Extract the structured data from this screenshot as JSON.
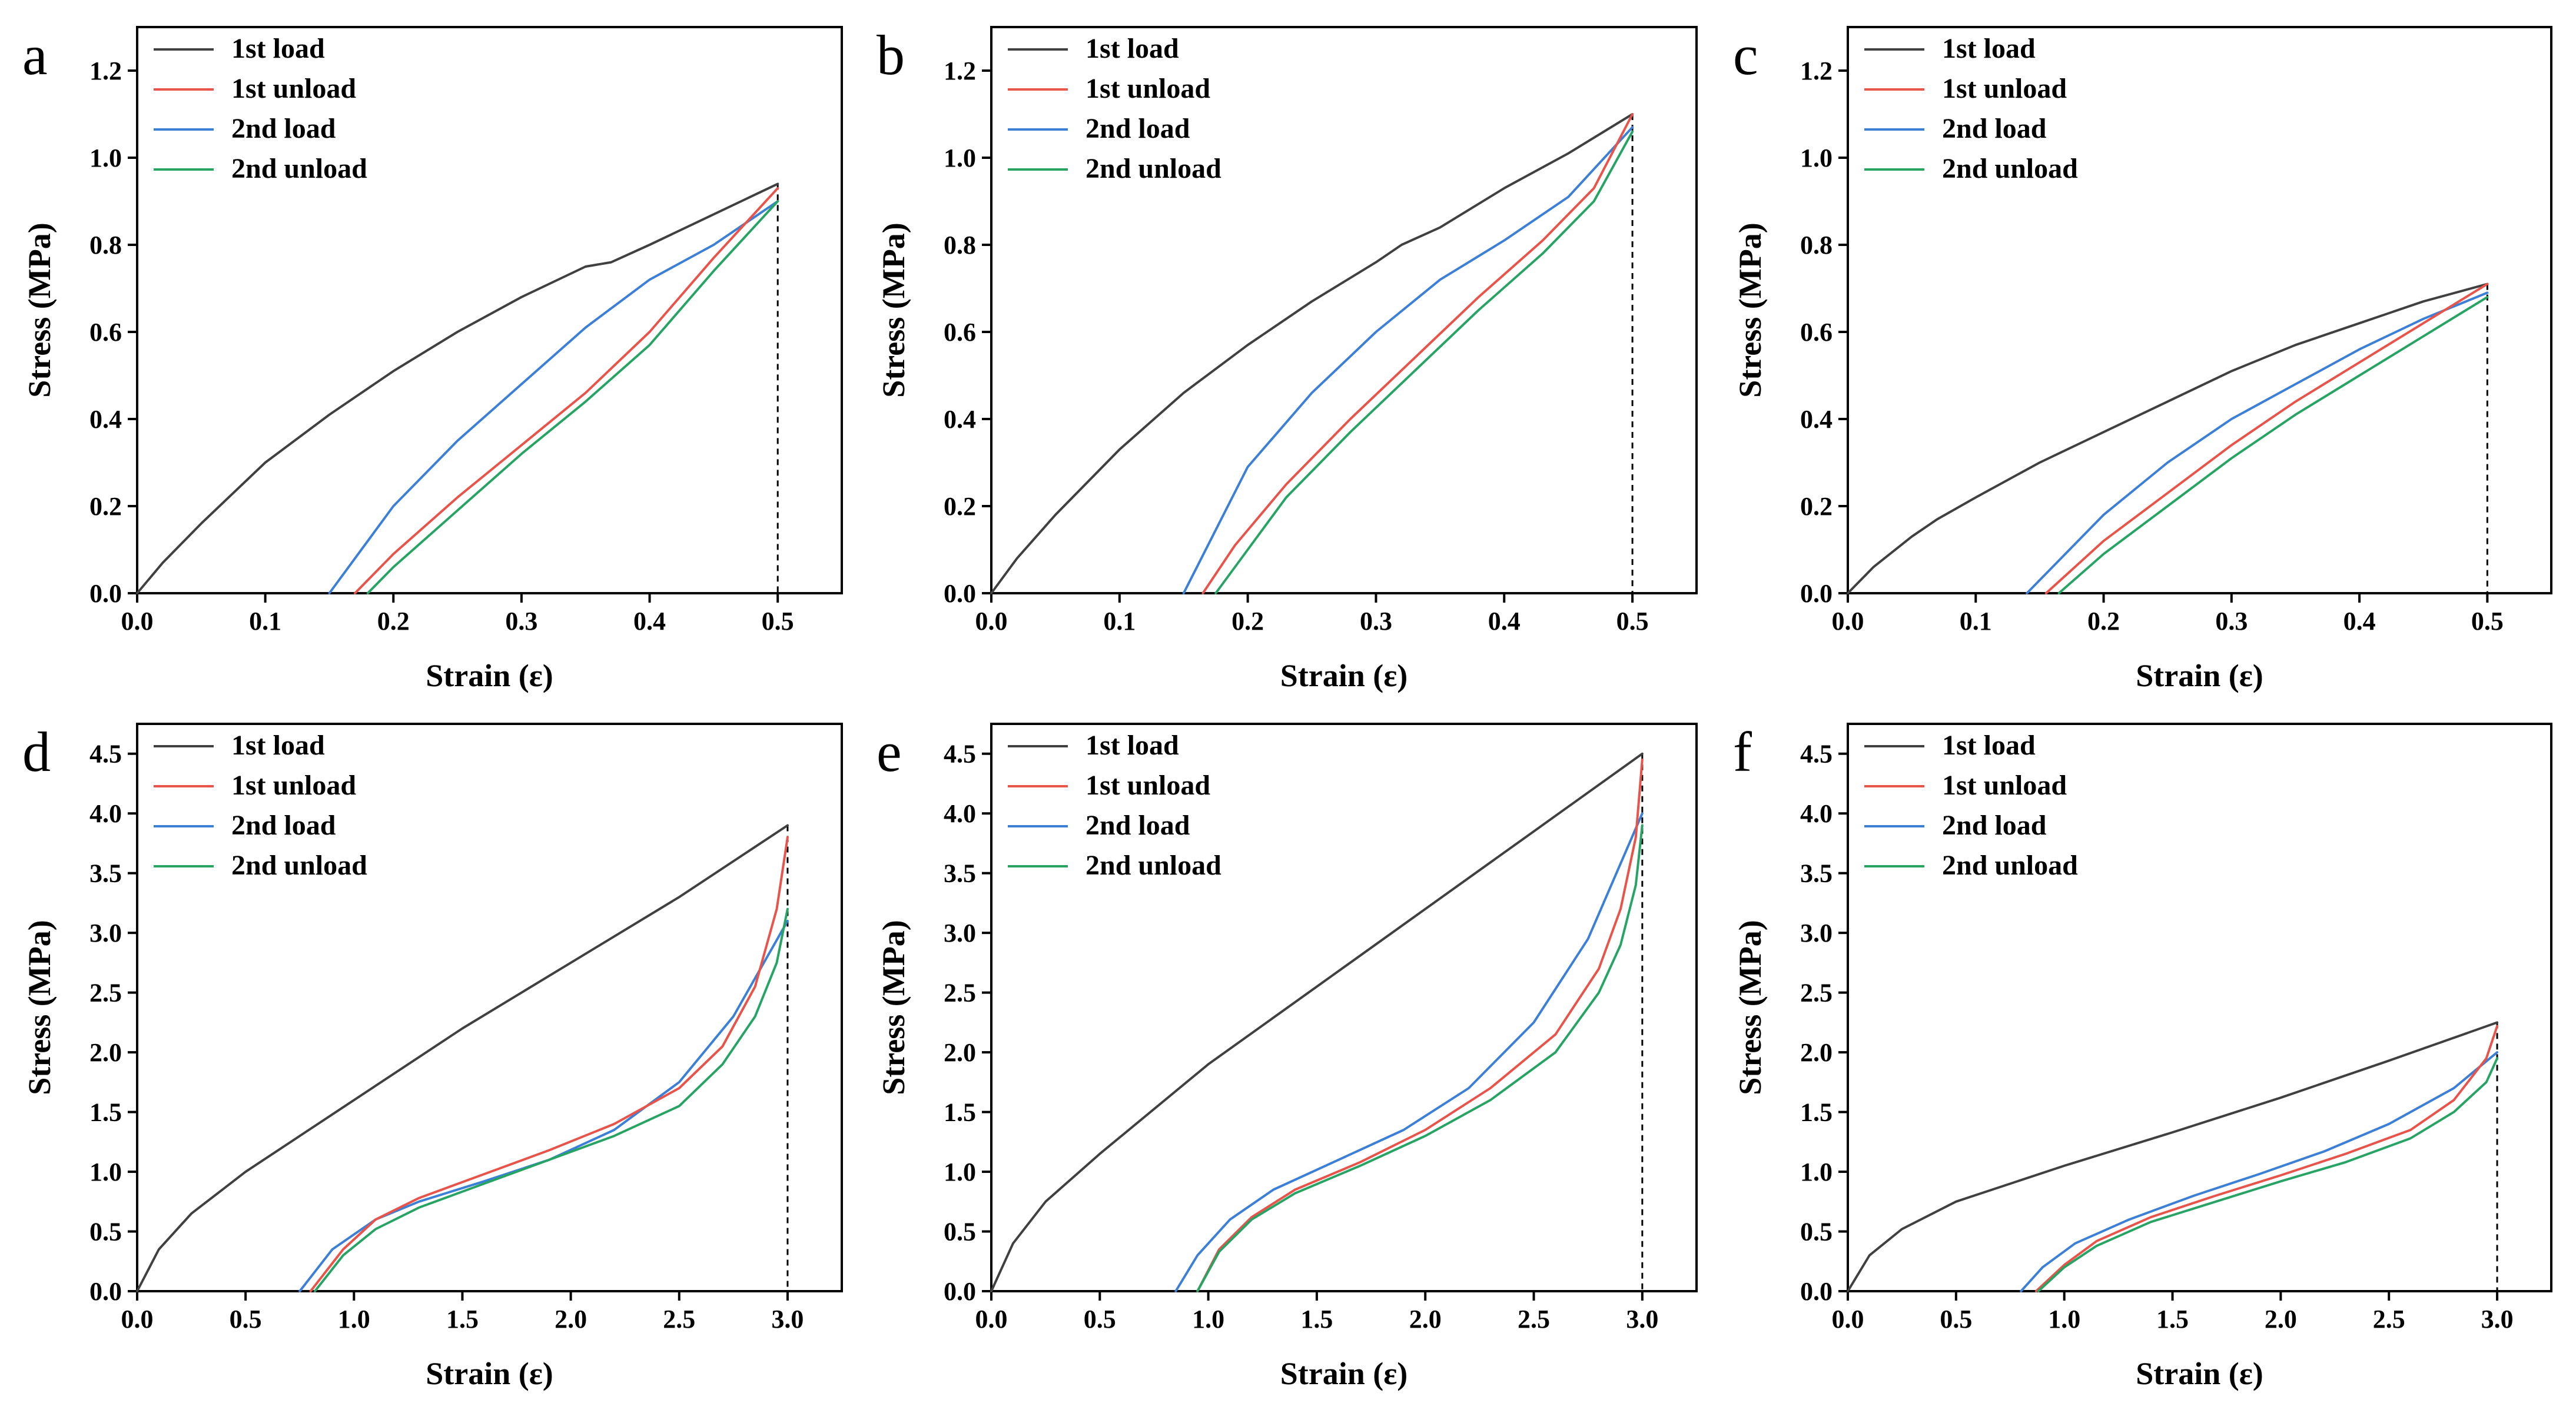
{
  "figure": {
    "xlabel": "Strain (ε)",
    "ylabel": "Stress (MPa)",
    "legend": [
      "1st load",
      "1st unload",
      "2nd load",
      "2nd unload"
    ],
    "colors": {
      "1st load": "#404040",
      "1st unload": "#e8534a",
      "2nd load": "#3c7fd6",
      "2nd unload": "#27a464"
    }
  },
  "chart_data": [
    {
      "panel": "a",
      "type": "line",
      "xlabel": "Strain (ε)",
      "ylabel": "Stress (MPa)",
      "xlim": [
        0,
        0.55
      ],
      "ylim": [
        0,
        1.3
      ],
      "xticks": [
        "0.0",
        "0.1",
        "0.2",
        "0.3",
        "0.4",
        "0.5"
      ],
      "yticks": [
        "0.0",
        "0.2",
        "0.4",
        "0.6",
        "0.8",
        "1.0",
        "1.2"
      ],
      "xtick_values": [
        0,
        0.1,
        0.2,
        0.3,
        0.4,
        0.5
      ],
      "ytick_values": [
        0,
        0.2,
        0.4,
        0.6,
        0.8,
        1.0,
        1.2
      ],
      "dashed_x": 0.5,
      "series": [
        {
          "name": "1st load",
          "x": [
            0,
            0.02,
            0.05,
            0.1,
            0.15,
            0.2,
            0.25,
            0.3,
            0.35,
            0.37,
            0.4,
            0.45,
            0.5
          ],
          "y": [
            0,
            0.07,
            0.16,
            0.3,
            0.41,
            0.51,
            0.6,
            0.68,
            0.75,
            0.76,
            0.8,
            0.87,
            0.94
          ]
        },
        {
          "name": "1st unload",
          "x": [
            0.5,
            0.45,
            0.4,
            0.35,
            0.3,
            0.25,
            0.2,
            0.17
          ],
          "y": [
            0.93,
            0.77,
            0.6,
            0.46,
            0.34,
            0.22,
            0.09,
            0
          ]
        },
        {
          "name": "2nd load",
          "x": [
            0.15,
            0.2,
            0.25,
            0.3,
            0.35,
            0.4,
            0.45,
            0.5
          ],
          "y": [
            0,
            0.2,
            0.35,
            0.48,
            0.61,
            0.72,
            0.8,
            0.9
          ]
        },
        {
          "name": "2nd unload",
          "x": [
            0.5,
            0.45,
            0.4,
            0.35,
            0.3,
            0.25,
            0.2,
            0.18
          ],
          "y": [
            0.9,
            0.74,
            0.57,
            0.44,
            0.32,
            0.19,
            0.06,
            0
          ]
        }
      ]
    },
    {
      "panel": "b",
      "type": "line",
      "xlabel": "Strain (ε)",
      "ylabel": "Stress (MPa)",
      "xlim": [
        0,
        0.55
      ],
      "ylim": [
        0,
        1.3
      ],
      "xticks": [
        "0.0",
        "0.1",
        "0.2",
        "0.3",
        "0.4",
        "0.5"
      ],
      "yticks": [
        "0.0",
        "0.2",
        "0.4",
        "0.6",
        "0.8",
        "1.0",
        "1.2"
      ],
      "xtick_values": [
        0,
        0.1,
        0.2,
        0.3,
        0.4,
        0.5
      ],
      "ytick_values": [
        0,
        0.2,
        0.4,
        0.6,
        0.8,
        1.0,
        1.2
      ],
      "dashed_x": 0.5,
      "series": [
        {
          "name": "1st load",
          "x": [
            0,
            0.02,
            0.05,
            0.1,
            0.15,
            0.2,
            0.25,
            0.3,
            0.32,
            0.35,
            0.4,
            0.45,
            0.5
          ],
          "y": [
            0,
            0.08,
            0.18,
            0.33,
            0.46,
            0.57,
            0.67,
            0.76,
            0.8,
            0.84,
            0.93,
            1.01,
            1.1
          ]
        },
        {
          "name": "1st unload",
          "x": [
            0.5,
            0.47,
            0.43,
            0.38,
            0.33,
            0.28,
            0.23,
            0.19,
            0.165
          ],
          "y": [
            1.1,
            0.93,
            0.81,
            0.68,
            0.54,
            0.4,
            0.25,
            0.11,
            0
          ]
        },
        {
          "name": "2nd load",
          "x": [
            0.15,
            0.2,
            0.25,
            0.3,
            0.35,
            0.4,
            0.45,
            0.5
          ],
          "y": [
            0,
            0.29,
            0.46,
            0.6,
            0.72,
            0.81,
            0.91,
            1.07
          ]
        },
        {
          "name": "2nd unload",
          "x": [
            0.5,
            0.47,
            0.43,
            0.38,
            0.33,
            0.28,
            0.23,
            0.2,
            0.175
          ],
          "y": [
            1.06,
            0.9,
            0.78,
            0.65,
            0.51,
            0.37,
            0.22,
            0.1,
            0
          ]
        }
      ]
    },
    {
      "panel": "c",
      "type": "line",
      "xlabel": "Strain (ε)",
      "ylabel": "Stress (MPa)",
      "xlim": [
        0,
        0.55
      ],
      "ylim": [
        0,
        1.3
      ],
      "xticks": [
        "0.0",
        "0.1",
        "0.2",
        "0.3",
        "0.4",
        "0.5"
      ],
      "yticks": [
        "0.0",
        "0.2",
        "0.4",
        "0.6",
        "0.8",
        "1.0",
        "1.2"
      ],
      "xtick_values": [
        0,
        0.1,
        0.2,
        0.3,
        0.4,
        0.5
      ],
      "ytick_values": [
        0,
        0.2,
        0.4,
        0.6,
        0.8,
        1.0,
        1.2
      ],
      "dashed_x": 0.5,
      "series": [
        {
          "name": "1st load",
          "x": [
            0,
            0.02,
            0.05,
            0.07,
            0.1,
            0.15,
            0.2,
            0.25,
            0.3,
            0.35,
            0.4,
            0.45,
            0.5
          ],
          "y": [
            0,
            0.06,
            0.13,
            0.17,
            0.22,
            0.3,
            0.37,
            0.44,
            0.51,
            0.57,
            0.62,
            0.67,
            0.71
          ]
        },
        {
          "name": "1st unload",
          "x": [
            0.5,
            0.45,
            0.4,
            0.35,
            0.3,
            0.25,
            0.2,
            0.155
          ],
          "y": [
            0.71,
            0.62,
            0.53,
            0.44,
            0.34,
            0.23,
            0.12,
            0
          ]
        },
        {
          "name": "2nd load",
          "x": [
            0.14,
            0.2,
            0.25,
            0.3,
            0.35,
            0.4,
            0.45,
            0.5
          ],
          "y": [
            0,
            0.18,
            0.3,
            0.4,
            0.48,
            0.56,
            0.63,
            0.69
          ]
        },
        {
          "name": "2nd unload",
          "x": [
            0.5,
            0.45,
            0.4,
            0.35,
            0.3,
            0.25,
            0.2,
            0.165
          ],
          "y": [
            0.68,
            0.59,
            0.5,
            0.41,
            0.31,
            0.2,
            0.09,
            0
          ]
        }
      ]
    },
    {
      "panel": "d",
      "type": "line",
      "xlabel": "Strain (ε)",
      "ylabel": "Stress (MPa)",
      "xlim": [
        0,
        3.25
      ],
      "ylim": [
        0,
        4.75
      ],
      "xticks": [
        "0.0",
        "0.5",
        "1.0",
        "1.5",
        "2.0",
        "2.5",
        "3.0"
      ],
      "yticks": [
        "0.0",
        "0.5",
        "1.0",
        "1.5",
        "2.0",
        "2.5",
        "3.0",
        "3.5",
        "4.0",
        "4.5"
      ],
      "xtick_values": [
        0,
        0.5,
        1.0,
        1.5,
        2.0,
        2.5,
        3.0
      ],
      "ytick_values": [
        0,
        0.5,
        1.0,
        1.5,
        2.0,
        2.5,
        3.0,
        3.5,
        4.0,
        4.5
      ],
      "dashed_x": 3.0,
      "series": [
        {
          "name": "1st load",
          "x": [
            0,
            0.1,
            0.25,
            0.5,
            1.0,
            1.5,
            2.0,
            2.5,
            3.0
          ],
          "y": [
            0,
            0.35,
            0.65,
            1.0,
            1.6,
            2.2,
            2.75,
            3.3,
            3.9
          ]
        },
        {
          "name": "1st unload",
          "x": [
            3.0,
            2.95,
            2.85,
            2.7,
            2.5,
            2.2,
            1.9,
            1.6,
            1.3,
            1.1,
            0.95,
            0.8
          ],
          "y": [
            3.8,
            3.2,
            2.55,
            2.05,
            1.7,
            1.4,
            1.18,
            0.98,
            0.78,
            0.6,
            0.35,
            0
          ]
        },
        {
          "name": "2nd load",
          "x": [
            0.75,
            0.9,
            1.1,
            1.3,
            1.6,
            1.9,
            2.2,
            2.5,
            2.75,
            3.0
          ],
          "y": [
            0,
            0.35,
            0.6,
            0.75,
            0.92,
            1.1,
            1.35,
            1.75,
            2.3,
            3.1
          ]
        },
        {
          "name": "2nd unload",
          "x": [
            3.0,
            2.95,
            2.85,
            2.7,
            2.5,
            2.2,
            1.9,
            1.6,
            1.3,
            1.1,
            0.95,
            0.82
          ],
          "y": [
            3.2,
            2.75,
            2.3,
            1.9,
            1.55,
            1.3,
            1.1,
            0.9,
            0.7,
            0.52,
            0.3,
            0
          ]
        }
      ]
    },
    {
      "panel": "e",
      "type": "line",
      "xlabel": "Strain (ε)",
      "ylabel": "Stress (MPa)",
      "xlim": [
        0,
        3.25
      ],
      "ylim": [
        0,
        4.75
      ],
      "xticks": [
        "0.0",
        "0.5",
        "1.0",
        "1.5",
        "2.0",
        "2.5",
        "3.0"
      ],
      "yticks": [
        "0.0",
        "0.5",
        "1.0",
        "1.5",
        "2.0",
        "2.5",
        "3.0",
        "3.5",
        "4.0",
        "4.5"
      ],
      "xtick_values": [
        0,
        0.5,
        1.0,
        1.5,
        2.0,
        2.5,
        3.0
      ],
      "ytick_values": [
        0,
        0.5,
        1.0,
        1.5,
        2.0,
        2.5,
        3.0,
        3.5,
        4.0,
        4.5
      ],
      "dashed_x": 3.0,
      "series": [
        {
          "name": "1st load",
          "x": [
            0,
            0.1,
            0.25,
            0.5,
            1.0,
            1.5,
            2.0,
            2.5,
            3.0
          ],
          "y": [
            0,
            0.4,
            0.75,
            1.15,
            1.9,
            2.55,
            3.2,
            3.85,
            4.5
          ]
        },
        {
          "name": "1st unload",
          "x": [
            3.0,
            2.97,
            2.9,
            2.8,
            2.6,
            2.3,
            2.0,
            1.7,
            1.4,
            1.2,
            1.05,
            0.95
          ],
          "y": [
            4.45,
            3.8,
            3.2,
            2.7,
            2.15,
            1.7,
            1.35,
            1.08,
            0.85,
            0.62,
            0.35,
            0
          ]
        },
        {
          "name": "2nd load",
          "x": [
            0.85,
            0.95,
            1.1,
            1.3,
            1.6,
            1.9,
            2.2,
            2.5,
            2.75,
            3.0
          ],
          "y": [
            0,
            0.3,
            0.6,
            0.85,
            1.1,
            1.35,
            1.7,
            2.25,
            2.95,
            4.0
          ]
        },
        {
          "name": "2nd unload",
          "x": [
            3.0,
            2.97,
            2.9,
            2.8,
            2.6,
            2.3,
            2.0,
            1.7,
            1.4,
            1.2,
            1.05,
            0.95
          ],
          "y": [
            3.9,
            3.4,
            2.9,
            2.5,
            2.0,
            1.6,
            1.3,
            1.05,
            0.82,
            0.6,
            0.33,
            0
          ]
        }
      ]
    },
    {
      "panel": "f",
      "type": "line",
      "xlabel": "Strain (ε)",
      "ylabel": "Stress (MPa)",
      "xlim": [
        0,
        3.25
      ],
      "ylim": [
        0,
        4.75
      ],
      "xticks": [
        "0.0",
        "0.5",
        "1.0",
        "1.5",
        "2.0",
        "2.5",
        "3.0"
      ],
      "yticks": [
        "0.0",
        "0.5",
        "1.0",
        "1.5",
        "2.0",
        "2.5",
        "3.0",
        "3.5",
        "4.0",
        "4.5"
      ],
      "xtick_values": [
        0,
        0.5,
        1.0,
        1.5,
        2.0,
        2.5,
        3.0
      ],
      "ytick_values": [
        0,
        0.5,
        1.0,
        1.5,
        2.0,
        2.5,
        3.0,
        3.5,
        4.0,
        4.5
      ],
      "dashed_x": 3.0,
      "series": [
        {
          "name": "1st load",
          "x": [
            0,
            0.1,
            0.25,
            0.5,
            1.0,
            1.5,
            2.0,
            2.5,
            3.0
          ],
          "y": [
            0,
            0.3,
            0.52,
            0.75,
            1.05,
            1.33,
            1.62,
            1.93,
            2.25
          ]
        },
        {
          "name": "1st unload",
          "x": [
            3.0,
            2.95,
            2.8,
            2.6,
            2.3,
            2.0,
            1.7,
            1.4,
            1.15,
            1.0,
            0.87
          ],
          "y": [
            2.22,
            1.95,
            1.6,
            1.35,
            1.15,
            0.97,
            0.8,
            0.62,
            0.42,
            0.22,
            0
          ]
        },
        {
          "name": "2nd load",
          "x": [
            0.8,
            0.9,
            1.05,
            1.3,
            1.6,
            1.9,
            2.2,
            2.5,
            2.8,
            3.0
          ],
          "y": [
            0,
            0.2,
            0.4,
            0.6,
            0.8,
            0.98,
            1.17,
            1.4,
            1.7,
            2.0
          ]
        },
        {
          "name": "2nd unload",
          "x": [
            3.0,
            2.95,
            2.8,
            2.6,
            2.3,
            2.0,
            1.7,
            1.4,
            1.15,
            1.0,
            0.88
          ],
          "y": [
            1.95,
            1.75,
            1.5,
            1.28,
            1.08,
            0.92,
            0.75,
            0.58,
            0.38,
            0.2,
            0
          ]
        }
      ]
    }
  ]
}
